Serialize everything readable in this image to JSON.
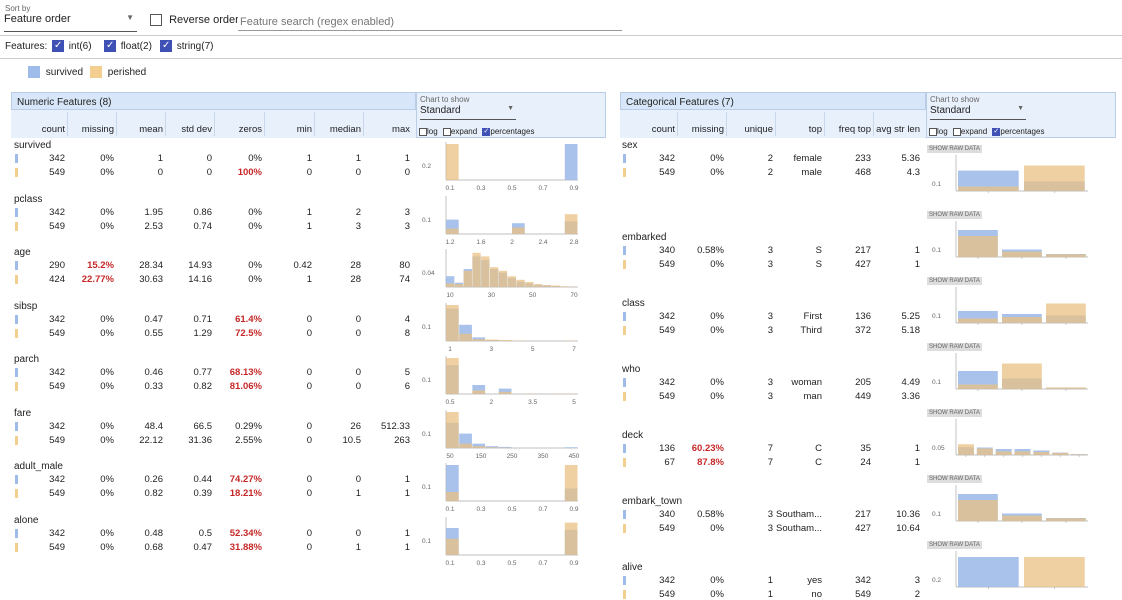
{
  "toolbar": {
    "sort_by_label": "Sort by",
    "sort_value": "Feature order",
    "reverse_label": "Reverse order",
    "search_placeholder": "Feature search (regex enabled)",
    "features_label": "Features:",
    "feature_types": [
      {
        "label": "int(6)",
        "checked": true
      },
      {
        "label": "float(2)",
        "checked": true
      },
      {
        "label": "string(7)",
        "checked": true
      }
    ]
  },
  "legend": [
    {
      "label": "survived",
      "color": "#9fbbea"
    },
    {
      "label": "perished",
      "color": "#f2cf8f"
    }
  ],
  "numeric": {
    "title": "Numeric Features (8)",
    "chart_to_show_label": "Chart to show",
    "chart_select": "Standard",
    "opts": {
      "log": "log",
      "expand": "expand",
      "percentages": "percentages"
    },
    "columns": [
      "count",
      "missing",
      "mean",
      "std dev",
      "zeros",
      "min",
      "median",
      "max"
    ],
    "features": [
      {
        "name": "survived",
        "rows": [
          [
            "342",
            "0%",
            "1",
            "0",
            "0%",
            "1",
            "1",
            "1"
          ],
          [
            "549",
            "0%",
            "0",
            "0",
            "100%",
            "0",
            "0",
            "0"
          ]
        ],
        "red_zero": [
          false,
          true
        ],
        "yt": "0.2",
        "xt": [
          "0.1",
          "0.3",
          "0.5",
          "0.7",
          "0.9"
        ],
        "b": [
          0,
          0,
          0,
          0,
          0,
          0,
          0,
          0,
          0,
          1.0
        ],
        "o": [
          1.0,
          0,
          0,
          0,
          0,
          0,
          0,
          0,
          0,
          0
        ]
      },
      {
        "name": "pclass",
        "rows": [
          [
            "342",
            "0%",
            "1.95",
            "0.86",
            "0%",
            "1",
            "2",
            "3"
          ],
          [
            "549",
            "0%",
            "2.53",
            "0.74",
            "0%",
            "1",
            "3",
            "3"
          ]
        ],
        "red_zero": [
          false,
          false
        ],
        "yt": "0.1",
        "xt": [
          "1.2",
          "1.6",
          "2",
          "2.4",
          "2.8"
        ],
        "b": [
          0.4,
          0,
          0,
          0,
          0,
          0.3,
          0,
          0,
          0,
          0.35
        ],
        "o": [
          0.15,
          0,
          0,
          0,
          0,
          0.18,
          0,
          0,
          0,
          0.55
        ]
      },
      {
        "name": "age",
        "rows": [
          [
            "290",
            "15.2%",
            "28.34",
            "14.93",
            "0%",
            "0.42",
            "28",
            "80"
          ],
          [
            "424",
            "22.77%",
            "30.63",
            "14.16",
            "0%",
            "1",
            "28",
            "74"
          ]
        ],
        "red_missing": [
          true,
          true
        ],
        "red_zero": [
          false,
          false
        ],
        "yt": "0.04",
        "xt": [
          "10",
          "30",
          "50",
          "70"
        ],
        "b": [
          0.3,
          0.12,
          0.5,
          0.85,
          0.75,
          0.5,
          0.4,
          0.25,
          0.15,
          0.1,
          0.06,
          0.05,
          0.03,
          0.01,
          0.01
        ],
        "o": [
          0.1,
          0.08,
          0.45,
          0.95,
          0.85,
          0.55,
          0.45,
          0.3,
          0.2,
          0.14,
          0.08,
          0.05,
          0.04,
          0.02,
          0.01
        ]
      },
      {
        "name": "sibsp",
        "rows": [
          [
            "342",
            "0%",
            "0.47",
            "0.71",
            "61.4%",
            "0",
            "0",
            "4"
          ],
          [
            "549",
            "0%",
            "0.55",
            "1.29",
            "72.5%",
            "0",
            "0",
            "8"
          ]
        ],
        "red_zero": [
          true,
          true
        ],
        "yt": "0.1",
        "xt": [
          "1",
          "3",
          "5",
          "7"
        ],
        "b": [
          0.9,
          0.45,
          0.1,
          0.03,
          0.01,
          0,
          0,
          0,
          0,
          0
        ],
        "o": [
          1.0,
          0.2,
          0.05,
          0.04,
          0.03,
          0.01,
          0,
          0,
          0,
          0.01
        ]
      },
      {
        "name": "parch",
        "rows": [
          [
            "342",
            "0%",
            "0.46",
            "0.77",
            "68.13%",
            "0",
            "0",
            "5"
          ],
          [
            "549",
            "0%",
            "0.33",
            "0.82",
            "81.06%",
            "0",
            "0",
            "6"
          ]
        ],
        "red_zero": [
          true,
          true
        ],
        "yt": "0.1",
        "xt": [
          "0.5",
          "2",
          "3.5",
          "5"
        ],
        "b": [
          0.8,
          0,
          0.25,
          0,
          0.15,
          0,
          0,
          0,
          0.01,
          0
        ],
        "o": [
          1.0,
          0,
          0.1,
          0,
          0.06,
          0,
          0.01,
          0,
          0.01,
          0.01
        ]
      },
      {
        "name": "fare",
        "rows": [
          [
            "342",
            "0%",
            "48.4",
            "66.5",
            "0.29%",
            "0",
            "26",
            "512.33"
          ],
          [
            "549",
            "0%",
            "22.12",
            "31.36",
            "2.55%",
            "0",
            "10.5",
            "263"
          ]
        ],
        "red_zero": [
          false,
          false
        ],
        "yt": "0.1",
        "xt": [
          "50",
          "150",
          "250",
          "350",
          "450"
        ],
        "b": [
          0.7,
          0.4,
          0.12,
          0.05,
          0.03,
          0,
          0,
          0,
          0,
          0.02
        ],
        "o": [
          1.0,
          0.12,
          0.05,
          0.02,
          0.01,
          0,
          0,
          0,
          0,
          0
        ]
      },
      {
        "name": "adult_male",
        "rows": [
          [
            "342",
            "0%",
            "0.26",
            "0.44",
            "74.27%",
            "0",
            "0",
            "1"
          ],
          [
            "549",
            "0%",
            "0.82",
            "0.39",
            "18.21%",
            "0",
            "1",
            "1"
          ]
        ],
        "red_zero": [
          true,
          true
        ],
        "yt": "0.1",
        "xt": [
          "0.1",
          "0.3",
          "0.5",
          "0.7",
          "0.9"
        ],
        "b": [
          1.0,
          0,
          0,
          0,
          0,
          0,
          0,
          0,
          0,
          0.35
        ],
        "o": [
          0.25,
          0,
          0,
          0,
          0,
          0,
          0,
          0,
          0,
          1.0
        ]
      },
      {
        "name": "alone",
        "rows": [
          [
            "342",
            "0%",
            "0.48",
            "0.5",
            "52.34%",
            "0",
            "0",
            "1"
          ],
          [
            "549",
            "0%",
            "0.68",
            "0.47",
            "31.88%",
            "0",
            "1",
            "1"
          ]
        ],
        "red_zero": [
          true,
          true
        ],
        "yt": "0.1",
        "xt": [
          "0.1",
          "0.3",
          "0.5",
          "0.7",
          "0.9"
        ],
        "b": [
          0.75,
          0,
          0,
          0,
          0,
          0,
          0,
          0,
          0,
          0.7
        ],
        "o": [
          0.45,
          0,
          0,
          0,
          0,
          0,
          0,
          0,
          0,
          0.9
        ]
      }
    ]
  },
  "categorical": {
    "title": "Categorical Features (7)",
    "chart_to_show_label": "Chart to show",
    "chart_select": "Standard",
    "opts": {
      "log": "log",
      "expand": "expand",
      "percentages": "percentages"
    },
    "show_raw": "SHOW RAW DATA",
    "columns": [
      "count",
      "missing",
      "unique",
      "top",
      "freq top",
      "avg str len"
    ],
    "features": [
      {
        "name": "sex",
        "rows": [
          [
            "342",
            "0%",
            "2",
            "female",
            "233",
            "5.36"
          ],
          [
            "549",
            "0%",
            "2",
            "male",
            "468",
            "4.3"
          ]
        ],
        "yt": "0.1",
        "b": [
          0.68,
          0.32
        ],
        "o": [
          0.15,
          0.85
        ]
      },
      {
        "name": "embarked",
        "rows": [
          [
            "340",
            "0.58%",
            "3",
            "S",
            "217",
            "1"
          ],
          [
            "549",
            "0%",
            "3",
            "S",
            "427",
            "1"
          ]
        ],
        "yt": "0.1",
        "b": [
          0.9,
          0.25,
          0.1
        ],
        "o": [
          0.7,
          0.18,
          0.09
        ]
      },
      {
        "name": "class",
        "rows": [
          [
            "342",
            "0%",
            "3",
            "First",
            "136",
            "5.25"
          ],
          [
            "549",
            "0%",
            "3",
            "Third",
            "372",
            "5.18"
          ]
        ],
        "yt": "0.1",
        "b": [
          0.4,
          0.3,
          0.25
        ],
        "o": [
          0.15,
          0.2,
          0.65
        ]
      },
      {
        "name": "who",
        "rows": [
          [
            "342",
            "0%",
            "3",
            "woman",
            "205",
            "4.49"
          ],
          [
            "549",
            "0%",
            "3",
            "man",
            "449",
            "3.36"
          ]
        ],
        "yt": "0.1",
        "b": [
          0.6,
          0.35,
          0.05
        ],
        "o": [
          0.15,
          0.85,
          0.05
        ]
      },
      {
        "name": "deck",
        "rows": [
          [
            "136",
            "60.23%",
            "7",
            "C",
            "35",
            "1"
          ],
          [
            "67",
            "87.8%",
            "7",
            "C",
            "24",
            "1"
          ]
        ],
        "red_missing": [
          true,
          true
        ],
        "yt": "0.05",
        "b": [
          0.26,
          0.25,
          0.2,
          0.2,
          0.15,
          0.08,
          0.03
        ],
        "o": [
          0.36,
          0.22,
          0.12,
          0.12,
          0.1,
          0.07,
          0.02
        ]
      },
      {
        "name": "embark_town",
        "rows": [
          [
            "340",
            "0.58%",
            "3",
            "Southam...",
            "217",
            "10.36"
          ],
          [
            "549",
            "0%",
            "3",
            "Southam...",
            "427",
            "10.64"
          ]
        ],
        "yt": "0.1",
        "b": [
          0.9,
          0.25,
          0.1
        ],
        "o": [
          0.7,
          0.18,
          0.09
        ]
      },
      {
        "name": "alive",
        "rows": [
          [
            "342",
            "0%",
            "1",
            "yes",
            "342",
            "3"
          ],
          [
            "549",
            "0%",
            "1",
            "no",
            "549",
            "2"
          ]
        ],
        "yt": "0.2",
        "b": [
          1.0,
          0
        ],
        "o": [
          0,
          1.0
        ]
      }
    ]
  }
}
